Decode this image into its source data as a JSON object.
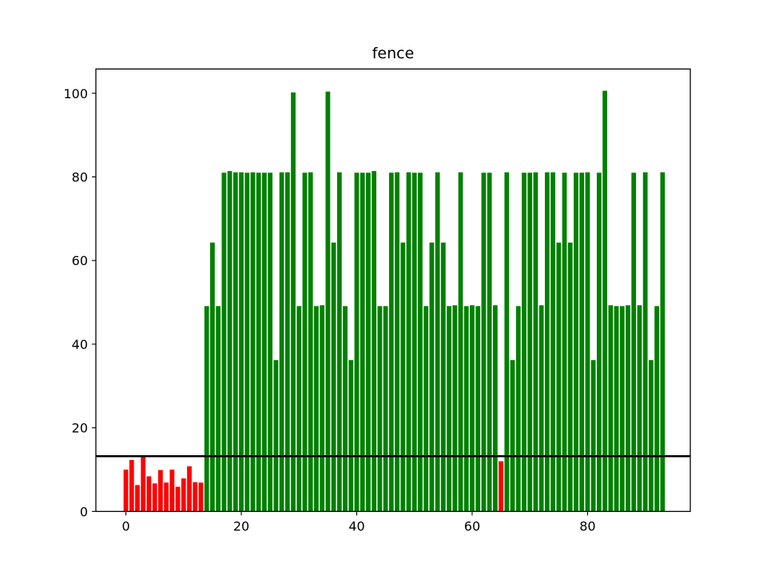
{
  "chart_data": {
    "type": "bar",
    "title": "fence",
    "xlabel": "",
    "ylabel": "",
    "xlim": [
      -5.2,
      97.8
    ],
    "ylim": [
      0,
      105.8
    ],
    "xticks": [
      0,
      20,
      40,
      60,
      80
    ],
    "yticks": [
      0,
      20,
      40,
      60,
      80,
      100
    ],
    "grid": false,
    "threshold": {
      "value": 13.2,
      "color": "#000000"
    },
    "colors": {
      "below": "#ff0000",
      "above": "#008000"
    },
    "x": [
      0,
      1,
      2,
      3,
      4,
      5,
      6,
      7,
      8,
      9,
      10,
      11,
      12,
      13,
      14,
      15,
      16,
      17,
      18,
      19,
      20,
      21,
      22,
      23,
      24,
      25,
      26,
      27,
      28,
      29,
      30,
      31,
      32,
      33,
      34,
      35,
      36,
      37,
      38,
      39,
      40,
      41,
      42,
      43,
      44,
      45,
      46,
      47,
      48,
      49,
      50,
      51,
      52,
      53,
      54,
      55,
      56,
      57,
      58,
      59,
      60,
      61,
      62,
      63,
      64,
      65,
      66,
      67,
      68,
      69,
      70,
      71,
      72,
      73,
      74,
      75,
      76,
      77,
      78,
      79,
      80,
      81,
      82,
      83,
      84,
      85,
      86,
      87,
      88,
      89,
      90,
      91,
      92,
      93
    ],
    "values": [
      10,
      12.3,
      6.3,
      13.1,
      8.4,
      6.7,
      9.9,
      6.9,
      10,
      5.9,
      7.9,
      10.8,
      7,
      6.9,
      49.1,
      64.3,
      49.1,
      81,
      81.4,
      81.1,
      81.1,
      81,
      81.1,
      81,
      81,
      81,
      36.2,
      81.1,
      81.1,
      100.2,
      49.1,
      81,
      81.1,
      49.1,
      49.3,
      100.4,
      64.3,
      81.1,
      49.1,
      36.2,
      81,
      81,
      81,
      81.4,
      49.1,
      49.1,
      81,
      81.1,
      64.3,
      81.1,
      81,
      81,
      49.1,
      64.3,
      81.1,
      64.3,
      49.1,
      49.3,
      81.1,
      49.1,
      49.3,
      49.1,
      81,
      81,
      49.3,
      12,
      81.1,
      36.2,
      49.1,
      81,
      81,
      81.1,
      49.3,
      81.1,
      81.1,
      64.3,
      81,
      64.3,
      81,
      81,
      81.1,
      36.2,
      81,
      100.6,
      49.3,
      49.1,
      49.1,
      49.3,
      81,
      49.3,
      81.1,
      36.2,
      49.1,
      81.1
    ]
  }
}
